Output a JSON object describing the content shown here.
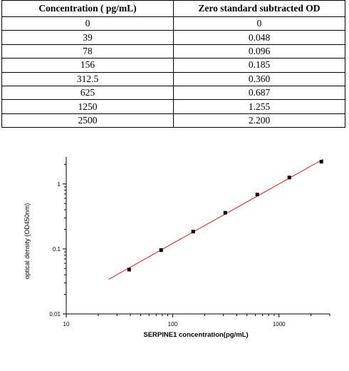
{
  "table": {
    "headers": [
      "Concentration ( pg/mL)",
      "Zero standard subtracted OD"
    ],
    "rows": [
      [
        "0",
        "0"
      ],
      [
        "39",
        "0.048"
      ],
      [
        "78",
        "0.096"
      ],
      [
        "156",
        "0.185"
      ],
      [
        "312.5",
        "0.360"
      ],
      [
        "625",
        "0.687"
      ],
      [
        "1250",
        "1.255"
      ],
      [
        "2500",
        "2.200"
      ]
    ]
  },
  "chart_data": {
    "type": "scatter",
    "xscale": "log",
    "yscale": "log",
    "xlim": [
      10,
      3000
    ],
    "ylim": [
      0.01,
      2.6
    ],
    "xticks": [
      10,
      100,
      1000
    ],
    "xtick_labels": [
      "10",
      "100",
      "1000"
    ],
    "yticks": [
      0.01,
      0.1,
      1
    ],
    "ytick_labels": [
      "0.01",
      "0.1",
      "1"
    ],
    "xlabel": "SERPINE1  concentration(pg/mL)",
    "ylabel": "optical density (OD450nm)",
    "grid": false,
    "series": [
      {
        "x": [
          39,
          78,
          156,
          312.5,
          625,
          1250,
          2500
        ],
        "y": [
          0.048,
          0.096,
          0.185,
          0.36,
          0.687,
          1.255,
          2.2
        ]
      }
    ],
    "fit_line": {
      "x": [
        25,
        2600
      ],
      "y": [
        0.034,
        2.4
      ]
    },
    "colors": {
      "points": "#000000",
      "fit": "#e02020",
      "axis": "#000000"
    }
  }
}
